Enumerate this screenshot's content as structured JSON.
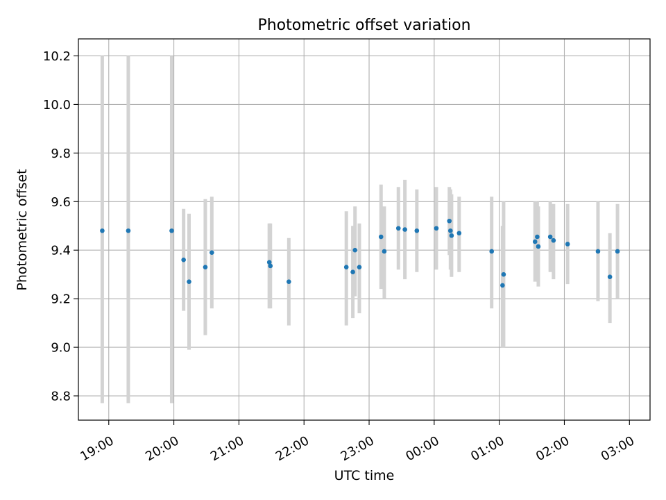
{
  "chart_data": {
    "type": "scatter",
    "title": "Photometric offset variation",
    "xlabel": "UTC time",
    "ylabel": "Photometric offset",
    "x_is_time": true,
    "x_base_day": "2000-01-01",
    "xlim": [
      "2000-01-01T18:32",
      "2000-01-02T03:19"
    ],
    "ylim": [
      8.7,
      10.27
    ],
    "x_ticks": [
      {
        "t": "2000-01-01T19:00",
        "label": "19:00"
      },
      {
        "t": "2000-01-01T20:00",
        "label": "20:00"
      },
      {
        "t": "2000-01-01T21:00",
        "label": "21:00"
      },
      {
        "t": "2000-01-01T22:00",
        "label": "22:00"
      },
      {
        "t": "2000-01-01T23:00",
        "label": "23:00"
      },
      {
        "t": "2000-01-02T00:00",
        "label": "00:00"
      },
      {
        "t": "2000-01-02T01:00",
        "label": "01:00"
      },
      {
        "t": "2000-01-02T02:00",
        "label": "02:00"
      },
      {
        "t": "2000-01-02T03:00",
        "label": "03:00"
      }
    ],
    "y_ticks": [
      {
        "v": 8.8,
        "label": "8.8"
      },
      {
        "v": 9.0,
        "label": "9.0"
      },
      {
        "v": 9.2,
        "label": "9.2"
      },
      {
        "v": 9.4,
        "label": "9.4"
      },
      {
        "v": 9.6,
        "label": "9.6"
      },
      {
        "v": 9.8,
        "label": "9.8"
      },
      {
        "v": 10.0,
        "label": "10.0"
      },
      {
        "v": 10.2,
        "label": "10.2"
      }
    ],
    "grid": true,
    "marker_color": "#1f77b4",
    "errorbar_color": "#d3d3d3",
    "points": [
      {
        "t": "2000-01-01T18:54",
        "y": 9.48,
        "lo": 8.77,
        "hi": 10.2
      },
      {
        "t": "2000-01-01T19:18",
        "y": 9.48,
        "lo": 8.77,
        "hi": 10.2
      },
      {
        "t": "2000-01-01T19:58",
        "y": 9.48,
        "lo": 8.77,
        "hi": 10.2
      },
      {
        "t": "2000-01-01T20:09",
        "y": 9.36,
        "lo": 9.15,
        "hi": 9.57
      },
      {
        "t": "2000-01-01T20:14",
        "y": 9.27,
        "lo": 8.99,
        "hi": 9.55
      },
      {
        "t": "2000-01-01T20:29",
        "y": 9.33,
        "lo": 9.05,
        "hi": 9.61
      },
      {
        "t": "2000-01-01T20:35",
        "y": 9.39,
        "lo": 9.16,
        "hi": 9.62
      },
      {
        "t": "2000-01-01T21:28",
        "y": 9.35,
        "lo": 9.16,
        "hi": 9.51
      },
      {
        "t": "2000-01-01T21:29",
        "y": 9.335,
        "lo": 9.16,
        "hi": 9.51
      },
      {
        "t": "2000-01-01T21:46",
        "y": 9.27,
        "lo": 9.09,
        "hi": 9.45
      },
      {
        "t": "2000-01-01T22:39",
        "y": 9.33,
        "lo": 9.09,
        "hi": 9.56
      },
      {
        "t": "2000-01-01T22:45",
        "y": 9.31,
        "lo": 9.12,
        "hi": 9.5
      },
      {
        "t": "2000-01-01T22:47",
        "y": 9.4,
        "lo": 9.21,
        "hi": 9.58
      },
      {
        "t": "2000-01-01T22:51",
        "y": 9.33,
        "lo": 9.14,
        "hi": 9.51
      },
      {
        "t": "2000-01-01T23:11",
        "y": 9.455,
        "lo": 9.24,
        "hi": 9.67
      },
      {
        "t": "2000-01-01T23:14",
        "y": 9.395,
        "lo": 9.2,
        "hi": 9.58
      },
      {
        "t": "2000-01-01T23:27",
        "y": 9.49,
        "lo": 9.32,
        "hi": 9.66
      },
      {
        "t": "2000-01-01T23:33",
        "y": 9.485,
        "lo": 9.28,
        "hi": 9.69
      },
      {
        "t": "2000-01-01T23:44",
        "y": 9.48,
        "lo": 9.31,
        "hi": 9.65
      },
      {
        "t": "2000-01-02T00:02",
        "y": 9.49,
        "lo": 9.32,
        "hi": 9.66
      },
      {
        "t": "2000-01-02T00:14",
        "y": 9.52,
        "lo": 9.38,
        "hi": 9.66
      },
      {
        "t": "2000-01-02T00:15",
        "y": 9.48,
        "lo": 9.32,
        "hi": 9.65
      },
      {
        "t": "2000-01-02T00:16",
        "y": 9.46,
        "lo": 9.29,
        "hi": 9.63
      },
      {
        "t": "2000-01-02T00:23",
        "y": 9.47,
        "lo": 9.31,
        "hi": 9.62
      },
      {
        "t": "2000-01-02T00:53",
        "y": 9.395,
        "lo": 9.16,
        "hi": 9.62
      },
      {
        "t": "2000-01-02T01:03",
        "y": 9.255,
        "lo": 9.0,
        "hi": 9.5
      },
      {
        "t": "2000-01-02T01:04",
        "y": 9.3,
        "lo": 9.0,
        "hi": 9.6
      },
      {
        "t": "2000-01-02T01:33",
        "y": 9.435,
        "lo": 9.27,
        "hi": 9.6
      },
      {
        "t": "2000-01-02T01:35",
        "y": 9.455,
        "lo": 9.3,
        "hi": 9.6
      },
      {
        "t": "2000-01-02T01:36",
        "y": 9.415,
        "lo": 9.25,
        "hi": 9.58
      },
      {
        "t": "2000-01-02T01:47",
        "y": 9.455,
        "lo": 9.31,
        "hi": 9.6
      },
      {
        "t": "2000-01-02T01:50",
        "y": 9.44,
        "lo": 9.28,
        "hi": 9.59
      },
      {
        "t": "2000-01-02T02:03",
        "y": 9.425,
        "lo": 9.26,
        "hi": 9.59
      },
      {
        "t": "2000-01-02T02:31",
        "y": 9.395,
        "lo": 9.19,
        "hi": 9.6
      },
      {
        "t": "2000-01-02T02:42",
        "y": 9.29,
        "lo": 9.1,
        "hi": 9.47
      },
      {
        "t": "2000-01-02T02:49",
        "y": 9.395,
        "lo": 9.2,
        "hi": 9.59
      }
    ]
  }
}
